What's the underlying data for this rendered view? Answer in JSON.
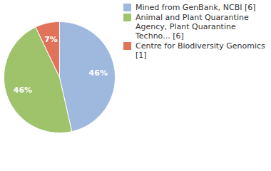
{
  "chart_data": {
    "type": "pie",
    "categories": [
      "Mined from GenBank, NCBI [6]",
      "Animal and Plant Quarantine Agency, Plant Quarantine Techno... [6]",
      "Centre for Biodiversity Genomics [1]"
    ],
    "values": [
      46,
      46,
      7
    ],
    "value_labels": [
      "46%",
      "46%",
      "7%"
    ],
    "colors": [
      "#9fb8de",
      "#9ec36a",
      "#e0735a"
    ],
    "data_labels": true,
    "legend": "top-right"
  }
}
